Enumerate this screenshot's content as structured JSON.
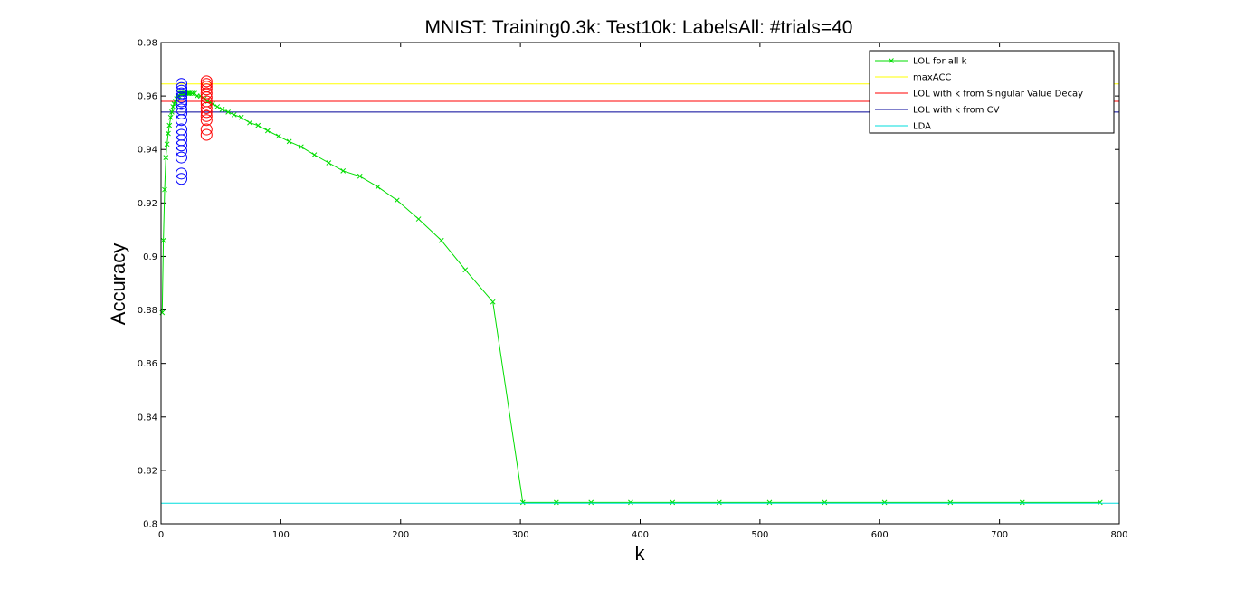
{
  "chart_data": {
    "type": "line",
    "title": "MNIST: Training0.3k: Test10k: LabelsAll: #trials=40",
    "xlabel": "k",
    "ylabel": "Accuracy",
    "xlim": [
      0,
      800
    ],
    "ylim": [
      0.8,
      0.98
    ],
    "xticks": [
      0,
      100,
      200,
      300,
      400,
      500,
      600,
      700,
      800
    ],
    "yticks": [
      0.8,
      0.82,
      0.84,
      0.86,
      0.88,
      0.9,
      0.92,
      0.94,
      0.96,
      0.98
    ],
    "xtick_labels": [
      "0",
      "100",
      "200",
      "300",
      "400",
      "500",
      "600",
      "700",
      "800"
    ],
    "ytick_labels": [
      "0.8",
      "0.82",
      "0.84",
      "0.86",
      "0.88",
      "0.9",
      "0.92",
      "0.94",
      "0.96",
      "0.98"
    ],
    "grid": false,
    "legend_position": "top-right",
    "legend": [
      "LOL for all k",
      "maxACC",
      "LOL with k from Singular Value Decay",
      "LOL with k from CV",
      "LDA"
    ],
    "colors": {
      "lol_all_k": "#00dd00",
      "maxacc": "#ffff00",
      "lol_svd": "#ff0000",
      "lol_cv": "#000099",
      "lda": "#00dddd",
      "svd_markers": "#ff0000",
      "cv_markers": "#0000ff"
    },
    "series": [
      {
        "name": "LOL for all k",
        "style": "line-with-x-markers",
        "x": [
          1,
          2,
          3,
          4,
          5,
          6,
          7,
          8,
          9,
          10,
          11,
          12,
          13,
          14,
          15,
          16,
          17,
          18,
          19,
          20,
          21,
          22,
          23,
          24,
          26,
          28,
          30,
          33,
          36,
          39,
          43,
          47,
          51,
          56,
          61,
          67,
          74,
          81,
          89,
          98,
          107,
          117,
          128,
          140,
          152,
          166,
          181,
          197,
          215,
          234,
          254,
          277,
          302,
          330,
          359,
          392,
          427,
          466,
          508,
          554,
          604,
          659,
          719,
          784
        ],
        "values": [
          0.879,
          0.906,
          0.925,
          0.937,
          0.942,
          0.946,
          0.949,
          0.952,
          0.954,
          0.956,
          0.957,
          0.958,
          0.959,
          0.96,
          0.96,
          0.961,
          0.961,
          0.961,
          0.961,
          0.961,
          0.961,
          0.961,
          0.961,
          0.961,
          0.961,
          0.961,
          0.96,
          0.96,
          0.959,
          0.958,
          0.957,
          0.956,
          0.955,
          0.954,
          0.953,
          0.952,
          0.95,
          0.949,
          0.947,
          0.945,
          0.943,
          0.941,
          0.938,
          0.935,
          0.932,
          0.93,
          0.926,
          0.921,
          0.914,
          0.906,
          0.895,
          0.883,
          0.808,
          0.808,
          0.808,
          0.808,
          0.808,
          0.808,
          0.808,
          0.808,
          0.808,
          0.808,
          0.808,
          0.808
        ]
      },
      {
        "name": "maxACC",
        "style": "hline",
        "value": 0.9645
      },
      {
        "name": "LOL with k from Singular Value Decay",
        "style": "hline",
        "value": 0.958
      },
      {
        "name": "LOL with k from CV",
        "style": "hline",
        "value": 0.954
      },
      {
        "name": "LDA",
        "style": "hline",
        "value": 0.8077
      },
      {
        "name": "",
        "style": "circles",
        "marker_color": "svd_markers",
        "x": 38,
        "values": [
          0.9455,
          0.9475,
          0.951,
          0.9525,
          0.954,
          0.9555,
          0.957,
          0.958,
          0.9595,
          0.961,
          0.9625,
          0.9635,
          0.9645,
          0.9655
        ]
      },
      {
        "name": "",
        "style": "circles",
        "marker_color": "cv_markers",
        "x": 17,
        "values": [
          0.929,
          0.931,
          0.937,
          0.9395,
          0.9415,
          0.9435,
          0.9455,
          0.9475,
          0.951,
          0.9535,
          0.955,
          0.957,
          0.958,
          0.9595,
          0.961,
          0.962,
          0.963,
          0.9645
        ]
      }
    ]
  }
}
